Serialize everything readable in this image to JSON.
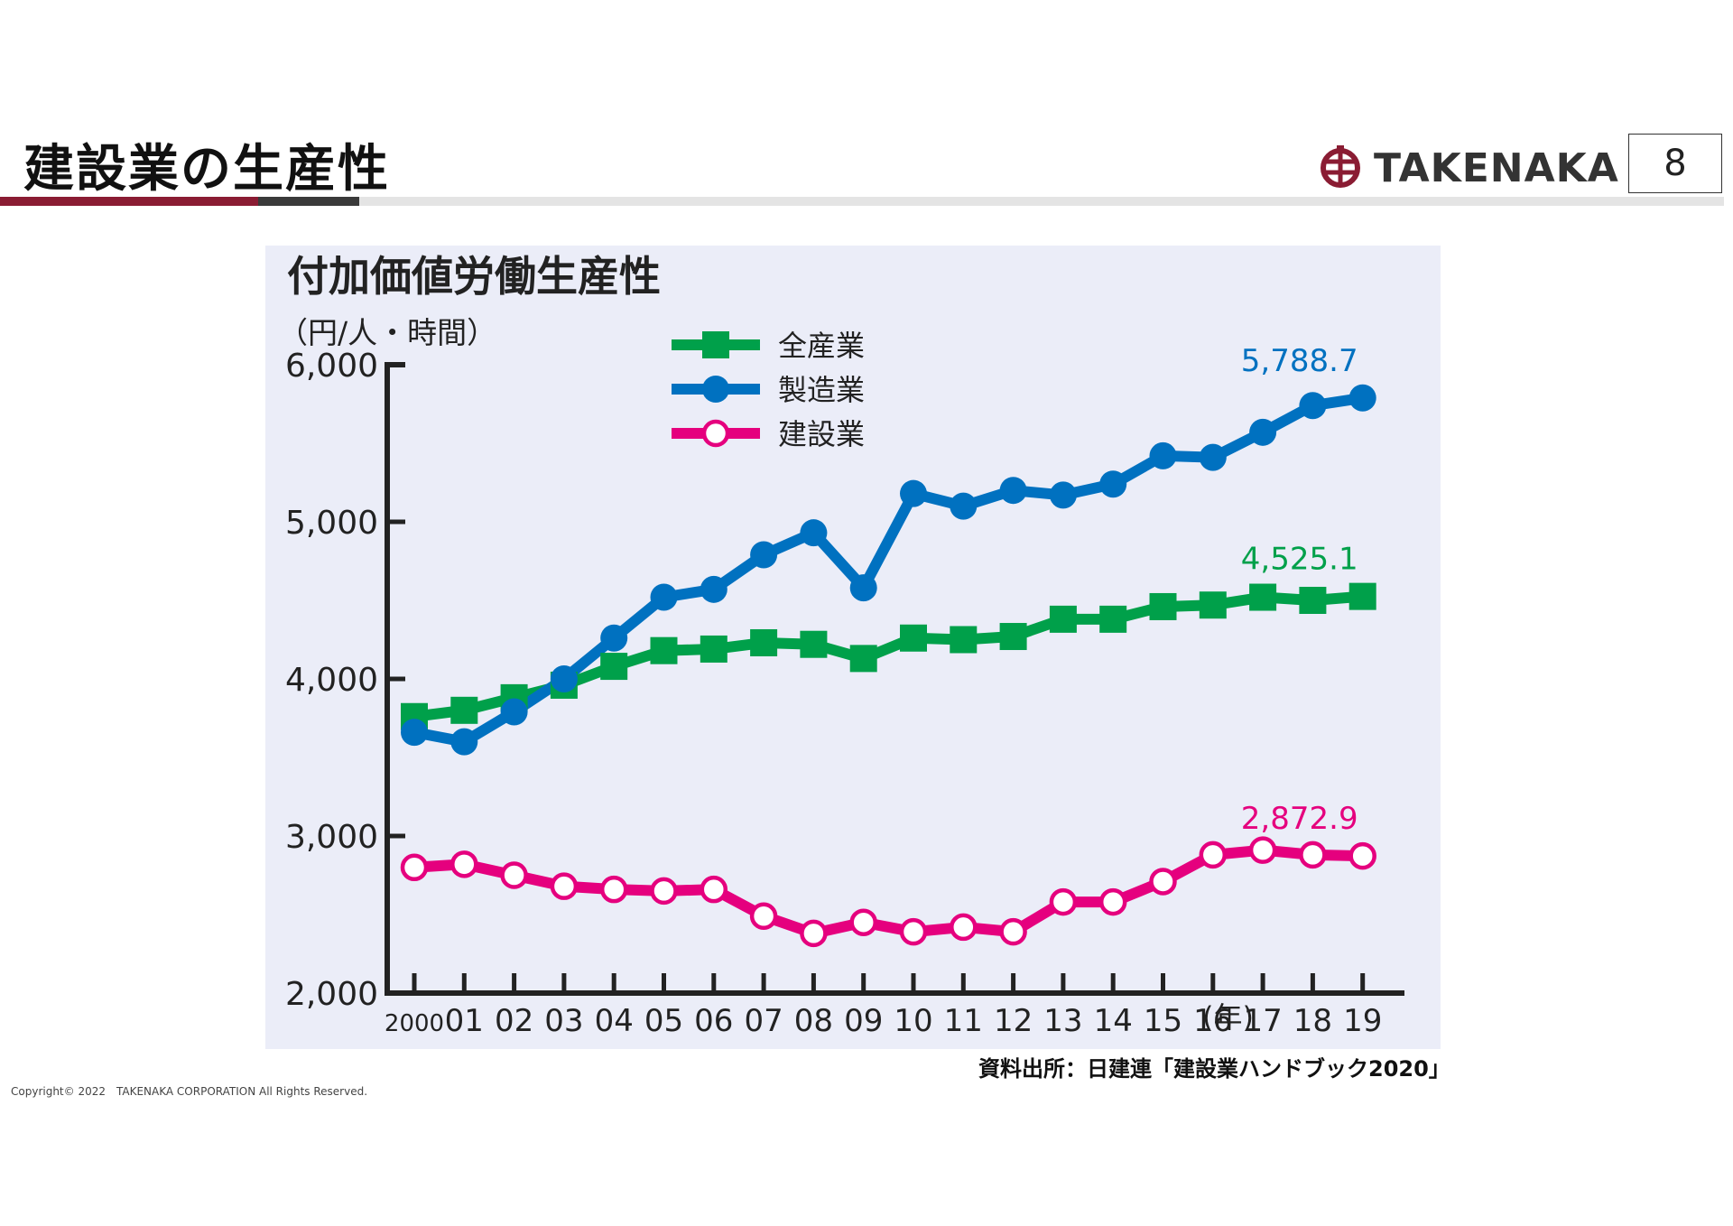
{
  "slide": {
    "title": "建設業の生産性",
    "page_number": "8",
    "logo_text": "TAKENAKA",
    "source": "資料出所：日建連「建設業ハンドブック2020」",
    "copyright": "Copyright© 2022　TAKENAKA CORPORATION All Rights Reserved."
  },
  "colors": {
    "accent_red": "#8a1c33",
    "green": "#00a04a",
    "blue": "#0071c0",
    "pink": "#e5007e"
  },
  "chart_data": {
    "type": "line",
    "title": "付加価値労働生産性",
    "ylabel": "（円/人・時間）",
    "xlabel": "(年)",
    "ylim": [
      2000,
      6000
    ],
    "y_ticks": [
      "2,000",
      "3,000",
      "4,000",
      "5,000",
      "6,000"
    ],
    "y_tick_values": [
      2000,
      3000,
      4000,
      5000,
      6000
    ],
    "categories": [
      "2000",
      "01",
      "02",
      "03",
      "04",
      "05",
      "06",
      "07",
      "08",
      "09",
      "10",
      "11",
      "12",
      "13",
      "14",
      "15",
      "16",
      "17",
      "18",
      "19"
    ],
    "legend_position": "top-center",
    "grid": false,
    "series": [
      {
        "name": "全産業",
        "color": "#00a04a",
        "marker": "square",
        "values": [
          3760,
          3800,
          3880,
          3960,
          4080,
          4180,
          4190,
          4230,
          4220,
          4130,
          4260,
          4250,
          4270,
          4380,
          4380,
          4460,
          4470,
          4520,
          4500,
          4525.1
        ],
        "end_label": "4,525.1"
      },
      {
        "name": "製造業",
        "color": "#0071c0",
        "marker": "circle",
        "values": [
          3660,
          3600,
          3790,
          4000,
          4260,
          4520,
          4570,
          4790,
          4930,
          4580,
          5180,
          5100,
          5200,
          5170,
          5240,
          5420,
          5410,
          5570,
          5740,
          5788.7
        ],
        "end_label": "5,788.7"
      },
      {
        "name": "建設業",
        "color": "#e5007e",
        "marker": "open-circle",
        "values": [
          2800,
          2820,
          2750,
          2680,
          2660,
          2650,
          2660,
          2490,
          2380,
          2450,
          2390,
          2420,
          2390,
          2580,
          2580,
          2710,
          2880,
          2910,
          2880,
          2872.9
        ],
        "end_label": "2,872.9"
      }
    ]
  }
}
